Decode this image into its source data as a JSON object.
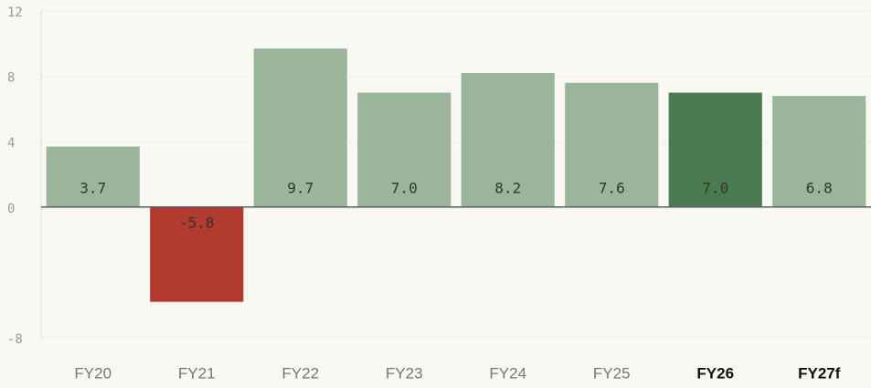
{
  "chart_data": {
    "type": "bar",
    "categories": [
      "FY20",
      "FY21",
      "FY22",
      "FY23",
      "FY24",
      "FY25",
      "FY26",
      "FY27f"
    ],
    "values": [
      3.7,
      -5.8,
      9.7,
      7.0,
      8.2,
      7.6,
      7.0,
      6.8
    ],
    "value_labels": [
      "3.7",
      "-5.8",
      "9.7",
      "7.0",
      "8.2",
      "7.6",
      "7.0",
      "6.8"
    ],
    "colors": [
      "#9bb59b",
      "#b33a2e",
      "#9bb59b",
      "#9bb59b",
      "#9bb59b",
      "#9bb59b",
      "#4a7a50",
      "#9bb59b"
    ],
    "ylim": [
      -8,
      12
    ],
    "yticks": [
      12,
      8,
      4,
      0,
      -8
    ],
    "grid": true
  }
}
